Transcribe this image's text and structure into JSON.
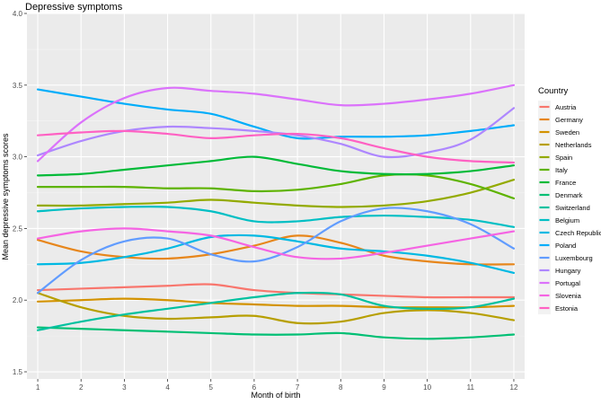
{
  "chart_data": {
    "type": "line",
    "title": "Depressive symptoms",
    "xlabel": "Month of birth",
    "ylabel": "Mean depressive symptoms scores",
    "xlim": [
      0.75,
      12.25
    ],
    "ylim": [
      1.45,
      4.0
    ],
    "x_ticks": [
      1,
      2,
      3,
      4,
      5,
      6,
      7,
      8,
      9,
      10,
      11,
      12
    ],
    "y_ticks": [
      1.5,
      2.0,
      2.5,
      3.0,
      3.5,
      4.0
    ],
    "y_tick_labels": [
      "1.5",
      "2.0",
      "2.5",
      "3.0",
      "3.5",
      "4.0"
    ],
    "grid": true,
    "legend_title": "Country",
    "legend_position": "right",
    "series": [
      {
        "name": "Austria",
        "color": "#F8766D",
        "x": [
          1,
          2,
          3,
          4,
          5,
          6,
          7,
          8,
          9,
          10,
          11,
          12
        ],
        "values": [
          2.07,
          2.08,
          2.09,
          2.1,
          2.11,
          2.07,
          2.05,
          2.04,
          2.03,
          2.02,
          2.02,
          2.02
        ]
      },
      {
        "name": "Germany",
        "color": "#E7861B",
        "x": [
          1,
          2,
          3,
          4,
          5,
          6,
          7,
          8,
          9,
          10,
          11,
          12
        ],
        "values": [
          2.42,
          2.34,
          2.3,
          2.29,
          2.32,
          2.38,
          2.45,
          2.4,
          2.31,
          2.27,
          2.25,
          2.25
        ]
      },
      {
        "name": "Sweden",
        "color": "#D39200",
        "x": [
          1,
          2,
          3,
          4,
          5,
          6,
          7,
          8,
          9,
          10,
          11,
          12
        ],
        "values": [
          1.99,
          2.0,
          2.01,
          2.0,
          1.98,
          1.97,
          1.96,
          1.96,
          1.95,
          1.95,
          1.95,
          1.96
        ]
      },
      {
        "name": "Netherlands",
        "color": "#B79F00",
        "x": [
          1,
          2,
          3,
          4,
          5,
          6,
          7,
          8,
          9,
          10,
          11,
          12
        ],
        "values": [
          2.05,
          1.95,
          1.89,
          1.87,
          1.88,
          1.89,
          1.84,
          1.85,
          1.91,
          1.93,
          1.91,
          1.86
        ]
      },
      {
        "name": "Spain",
        "color": "#93AA00",
        "x": [
          1,
          2,
          3,
          4,
          5,
          6,
          7,
          8,
          9,
          10,
          11,
          12
        ],
        "values": [
          2.66,
          2.66,
          2.67,
          2.68,
          2.7,
          2.68,
          2.66,
          2.65,
          2.66,
          2.69,
          2.75,
          2.84
        ]
      },
      {
        "name": "Italy",
        "color": "#5EB300",
        "x": [
          1,
          2,
          3,
          4,
          5,
          6,
          7,
          8,
          9,
          10,
          11,
          12
        ],
        "values": [
          2.79,
          2.79,
          2.79,
          2.78,
          2.78,
          2.76,
          2.77,
          2.81,
          2.87,
          2.87,
          2.81,
          2.71
        ]
      },
      {
        "name": "France",
        "color": "#00BA38",
        "x": [
          1,
          2,
          3,
          4,
          5,
          6,
          7,
          8,
          9,
          10,
          11,
          12
        ],
        "values": [
          2.87,
          2.88,
          2.91,
          2.94,
          2.97,
          3.0,
          2.95,
          2.9,
          2.88,
          2.88,
          2.9,
          2.94
        ]
      },
      {
        "name": "Denmark",
        "color": "#00BF74",
        "x": [
          1,
          2,
          3,
          4,
          5,
          6,
          7,
          8,
          9,
          10,
          11,
          12
        ],
        "values": [
          1.81,
          1.8,
          1.79,
          1.78,
          1.77,
          1.76,
          1.76,
          1.77,
          1.74,
          1.73,
          1.74,
          1.76
        ]
      },
      {
        "name": "Switzerland",
        "color": "#00C19F",
        "x": [
          1,
          2,
          3,
          4,
          5,
          6,
          7,
          8,
          9,
          10,
          11,
          12
        ],
        "values": [
          1.79,
          1.85,
          1.9,
          1.94,
          1.98,
          2.02,
          2.05,
          2.04,
          1.96,
          1.94,
          1.95,
          2.01
        ]
      },
      {
        "name": "Belgium",
        "color": "#00BFC4",
        "x": [
          1,
          2,
          3,
          4,
          5,
          6,
          7,
          8,
          9,
          10,
          11,
          12
        ],
        "values": [
          2.62,
          2.64,
          2.65,
          2.65,
          2.62,
          2.55,
          2.55,
          2.58,
          2.59,
          2.58,
          2.56,
          2.51
        ]
      },
      {
        "name": "Czech Republic",
        "color": "#00B9E3",
        "x": [
          1,
          2,
          3,
          4,
          5,
          6,
          7,
          8,
          9,
          10,
          11,
          12
        ],
        "values": [
          2.25,
          2.26,
          2.3,
          2.36,
          2.44,
          2.45,
          2.41,
          2.36,
          2.34,
          2.31,
          2.26,
          2.19
        ]
      },
      {
        "name": "Poland",
        "color": "#00ADFA",
        "x": [
          1,
          2,
          3,
          4,
          5,
          6,
          7,
          8,
          9,
          10,
          11,
          12
        ],
        "values": [
          3.47,
          3.42,
          3.37,
          3.33,
          3.3,
          3.21,
          3.13,
          3.14,
          3.14,
          3.15,
          3.18,
          3.22
        ]
      },
      {
        "name": "Luxembourg",
        "color": "#619CFF",
        "x": [
          1,
          2,
          3,
          4,
          5,
          6,
          7,
          8,
          9,
          10,
          11,
          12
        ],
        "values": [
          2.05,
          2.28,
          2.41,
          2.43,
          2.32,
          2.27,
          2.37,
          2.55,
          2.64,
          2.62,
          2.53,
          2.36
        ]
      },
      {
        "name": "Hungary",
        "color": "#AE87FF",
        "x": [
          1,
          2,
          3,
          4,
          5,
          6,
          7,
          8,
          9,
          10,
          11,
          12
        ],
        "values": [
          3.01,
          3.11,
          3.18,
          3.21,
          3.2,
          3.18,
          3.15,
          3.09,
          3.0,
          3.03,
          3.12,
          3.34
        ]
      },
      {
        "name": "Portugal",
        "color": "#DB72FB",
        "x": [
          1,
          2,
          3,
          4,
          5,
          6,
          7,
          8,
          9,
          10,
          11,
          12
        ],
        "values": [
          2.97,
          3.24,
          3.41,
          3.48,
          3.46,
          3.44,
          3.4,
          3.36,
          3.37,
          3.4,
          3.44,
          3.5
        ]
      },
      {
        "name": "Slovenia",
        "color": "#F564E3",
        "x": [
          1,
          2,
          3,
          4,
          5,
          6,
          7,
          8,
          9,
          10,
          11,
          12
        ],
        "values": [
          2.43,
          2.48,
          2.5,
          2.48,
          2.45,
          2.37,
          2.3,
          2.29,
          2.33,
          2.38,
          2.43,
          2.48
        ]
      },
      {
        "name": "Estonia",
        "color": "#FF61C3",
        "x": [
          1,
          2,
          3,
          4,
          5,
          6,
          7,
          8,
          9,
          10,
          11,
          12
        ],
        "values": [
          3.15,
          3.17,
          3.18,
          3.16,
          3.13,
          3.15,
          3.16,
          3.13,
          3.06,
          3.0,
          2.97,
          2.96
        ]
      }
    ]
  }
}
